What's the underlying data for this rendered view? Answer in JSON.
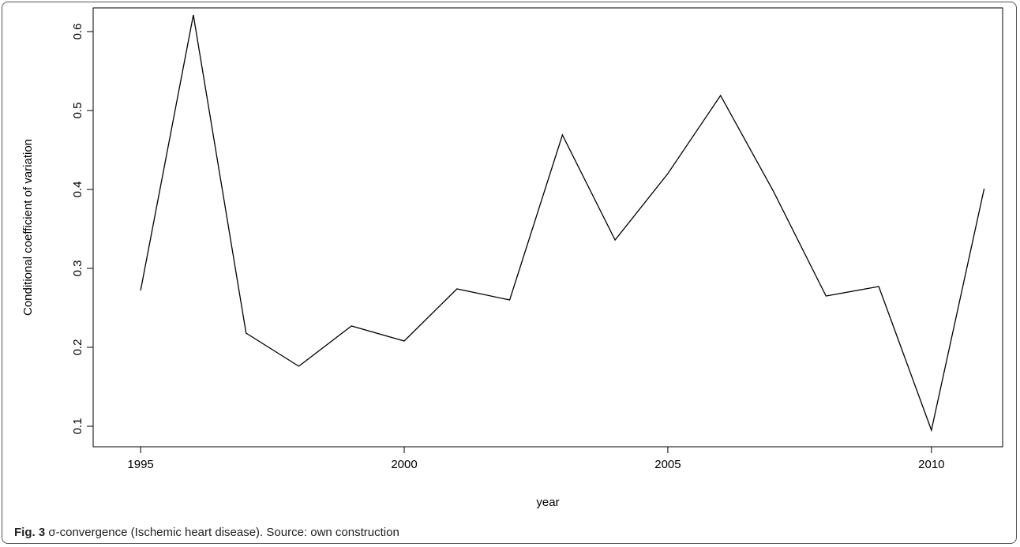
{
  "caption": {
    "label": "Fig. 3",
    "text": "σ-convergence (Ischemic heart disease). Source: own construction"
  },
  "chart_data": {
    "type": "line",
    "title": "",
    "xlabel": "year",
    "ylabel": "Conditional coefficient of variation",
    "xlim": [
      1994.1,
      2011.35
    ],
    "ylim": [
      0.074,
      0.63
    ],
    "x_ticks": [
      {
        "value": 1995,
        "label": "1995"
      },
      {
        "value": 2000,
        "label": "2000"
      },
      {
        "value": 2005,
        "label": "2005"
      },
      {
        "value": 2010,
        "label": "2010"
      }
    ],
    "y_ticks": [
      {
        "value": 0.1,
        "label": "0.1"
      },
      {
        "value": 0.2,
        "label": "0.2"
      },
      {
        "value": 0.3,
        "label": "0.3"
      },
      {
        "value": 0.4,
        "label": "0.4"
      },
      {
        "value": 0.5,
        "label": "0.5"
      },
      {
        "value": 0.6,
        "label": "0.6"
      }
    ],
    "grid": false,
    "line_color": "#000000",
    "series": [
      {
        "x": [
          1995,
          1996,
          1997,
          1998,
          1999,
          2000,
          2001,
          2002,
          2003,
          2004,
          2005,
          2006,
          2007,
          2008,
          2009,
          2010,
          2011
        ],
        "values": [
          0.272,
          0.621,
          0.218,
          0.176,
          0.227,
          0.208,
          0.274,
          0.26,
          0.469,
          0.336,
          0.42,
          0.519,
          0.398,
          0.265,
          0.277,
          0.095,
          0.401
        ]
      }
    ]
  }
}
